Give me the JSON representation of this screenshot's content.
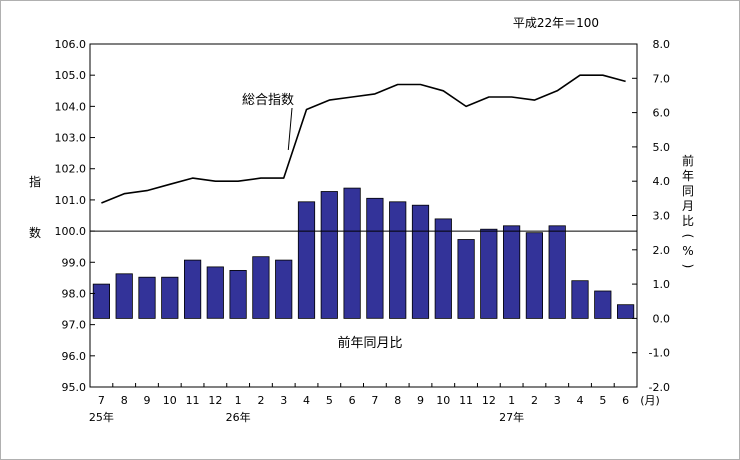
{
  "chart_data": {
    "type": "bar+line",
    "note": "平成22年＝100",
    "left_axis": {
      "label_chars": [
        "指",
        "数"
      ],
      "ylim": [
        95.0,
        106.0
      ],
      "ticks": [
        "95.0",
        "96.0",
        "97.0",
        "98.0",
        "99.0",
        "100.0",
        "101.0",
        "102.0",
        "103.0",
        "104.0",
        "105.0",
        "106.0"
      ]
    },
    "right_axis": {
      "label_chars": [
        "前",
        "年",
        "同",
        "月",
        "比",
        "(",
        "%",
        ")"
      ],
      "ylim": [
        -2.0,
        8.0
      ],
      "ticks": [
        "-2.0",
        "-1.0",
        "0.0",
        "1.0",
        "2.0",
        "3.0",
        "4.0",
        "5.0",
        "6.0",
        "7.0",
        "8.0"
      ]
    },
    "categories": [
      "7",
      "8",
      "9",
      "10",
      "11",
      "12",
      "1",
      "2",
      "3",
      "4",
      "5",
      "6",
      "7",
      "8",
      "9",
      "10",
      "11",
      "12",
      "1",
      "2",
      "3",
      "4",
      "5",
      "6"
    ],
    "month_unit": "(月)",
    "year_labels": [
      {
        "text": "25年",
        "index": 0
      },
      {
        "text": "26年",
        "index": 6
      },
      {
        "text": "27年",
        "index": 18
      }
    ],
    "series": [
      {
        "name": "前年同月比",
        "type": "bar",
        "axis": "right",
        "color": "#333399",
        "values": [
          1.0,
          1.3,
          1.2,
          1.2,
          1.7,
          1.5,
          1.4,
          1.8,
          1.7,
          3.4,
          3.7,
          3.8,
          3.5,
          3.4,
          3.3,
          2.9,
          2.3,
          2.6,
          2.7,
          2.5,
          2.7,
          1.1,
          0.8,
          0.4
        ]
      },
      {
        "name": "総合指数",
        "type": "line",
        "axis": "left",
        "color": "#000000",
        "values": [
          100.9,
          101.2,
          101.3,
          101.5,
          101.7,
          101.6,
          101.6,
          101.7,
          101.7,
          103.9,
          104.2,
          104.3,
          104.4,
          104.7,
          104.7,
          104.5,
          104.0,
          104.3,
          104.3,
          104.2,
          104.5,
          105.0,
          105.0,
          104.8
        ]
      }
    ],
    "reference_line": {
      "axis": "left",
      "value": 100.0
    },
    "annotations": {
      "line_label": "総合指数",
      "bar_label": "前年同月比"
    }
  }
}
